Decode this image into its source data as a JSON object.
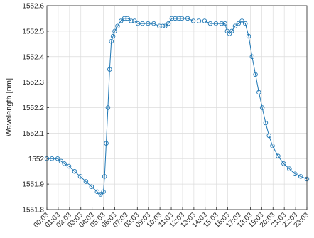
{
  "chart_data": {
    "type": "line",
    "title": "",
    "xlabel": "",
    "ylabel": "Wavelength [nm]",
    "ylim": [
      1551.8,
      1552.6
    ],
    "y_ticks": [
      "1552.6",
      "1552.5",
      "1552.4",
      "1552.3",
      "1552.2",
      "1552.1",
      "1552",
      "1551.9",
      "1551.8"
    ],
    "x_range_hours": [
      0.05,
      23.05
    ],
    "x_tick_labels": [
      "00:03",
      "01:03",
      "02:03",
      "03:03",
      "04:03",
      "05:03",
      "06:03",
      "07:03",
      "08:03",
      "09:03",
      "10:03",
      "11:03",
      "12:03",
      "13:03",
      "14:03",
      "15:03",
      "16:03",
      "17:03",
      "18:03",
      "19:03",
      "20:03",
      "21:03",
      "22:03",
      "23:03"
    ],
    "grid": true,
    "marker": "circle",
    "color": "#1f77b4",
    "series": [
      {
        "x_hours": [
          0.05,
          0.5,
          1.0,
          1.3,
          1.6,
          2.0,
          2.5,
          3.0,
          3.5,
          4.0,
          4.5,
          4.8,
          5.05,
          5.15,
          5.3,
          5.45,
          5.6,
          5.75,
          5.9,
          6.05,
          6.3,
          6.6,
          6.9,
          7.2,
          7.5,
          7.8,
          8.1,
          8.5,
          9.0,
          9.5,
          10.0,
          10.3,
          10.5,
          10.8,
          11.1,
          11.4,
          11.7,
          12.0,
          12.5,
          13.0,
          13.5,
          14.0,
          14.5,
          15.0,
          15.5,
          15.8,
          16.0,
          16.2,
          16.4,
          16.7,
          17.0,
          17.3,
          17.6,
          17.9,
          18.2,
          18.5,
          18.8,
          19.1,
          19.4,
          19.7,
          20.0,
          20.5,
          21.0,
          21.5,
          22.0,
          22.5,
          23.05
        ],
        "y": [
          1552.0,
          1552.0,
          1552.0,
          1551.99,
          1551.98,
          1551.97,
          1551.95,
          1551.93,
          1551.91,
          1551.89,
          1551.87,
          1551.86,
          1551.87,
          1551.93,
          1552.06,
          1552.2,
          1552.35,
          1552.46,
          1552.48,
          1552.5,
          1552.52,
          1552.54,
          1552.55,
          1552.55,
          1552.54,
          1552.54,
          1552.53,
          1552.53,
          1552.53,
          1552.53,
          1552.52,
          1552.52,
          1552.52,
          1552.53,
          1552.55,
          1552.55,
          1552.55,
          1552.55,
          1552.55,
          1552.54,
          1552.54,
          1552.54,
          1552.53,
          1552.53,
          1552.53,
          1552.53,
          1552.5,
          1552.49,
          1552.5,
          1552.52,
          1552.53,
          1552.54,
          1552.53,
          1552.48,
          1552.4,
          1552.33,
          1552.26,
          1552.2,
          1552.14,
          1552.09,
          1552.05,
          1552.01,
          1551.98,
          1551.96,
          1551.94,
          1551.93,
          1551.92
        ]
      }
    ]
  }
}
